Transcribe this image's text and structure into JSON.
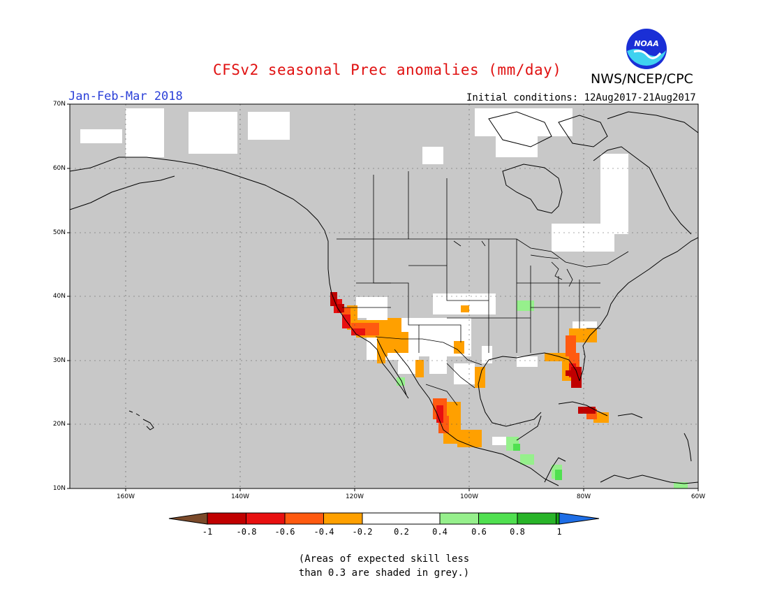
{
  "header": {
    "title": "CFSv2 seasonal Prec anomalies (mm/day)",
    "agency": "NWS/NCEP/CPC",
    "season": "Jan-Feb-Mar 2018",
    "initial_conditions": "Initial conditions: 12Aug2017-21Aug2017",
    "logo_text": "NOAA"
  },
  "axes": {
    "lat_labels": [
      "70N",
      "60N",
      "50N",
      "40N",
      "30N",
      "20N",
      "10N"
    ],
    "lon_labels": [
      "160W",
      "140W",
      "120W",
      "100W",
      "80W",
      "60W"
    ]
  },
  "colorbar": {
    "labels": [
      "-1",
      "-0.8",
      "-0.6",
      "-0.4",
      "-0.2",
      "0.2",
      "0.4",
      "0.6",
      "0.8",
      "1"
    ],
    "colors": [
      "#7b4a2a",
      "#c00000",
      "#e81010",
      "#ff5a10",
      "#ffa000",
      "#ffffff",
      "#96f08c",
      "#50e050",
      "#28b428",
      "#14a014",
      "#1e6ee6"
    ]
  },
  "note": {
    "line1": "(Areas of expected skill less",
    "line2": "than 0.3 are shaded in grey.)"
  },
  "colors": {
    "skill_grey": "#c8c8c8",
    "title_red": "#e01010",
    "season_blue": "#2a3fd8"
  }
}
